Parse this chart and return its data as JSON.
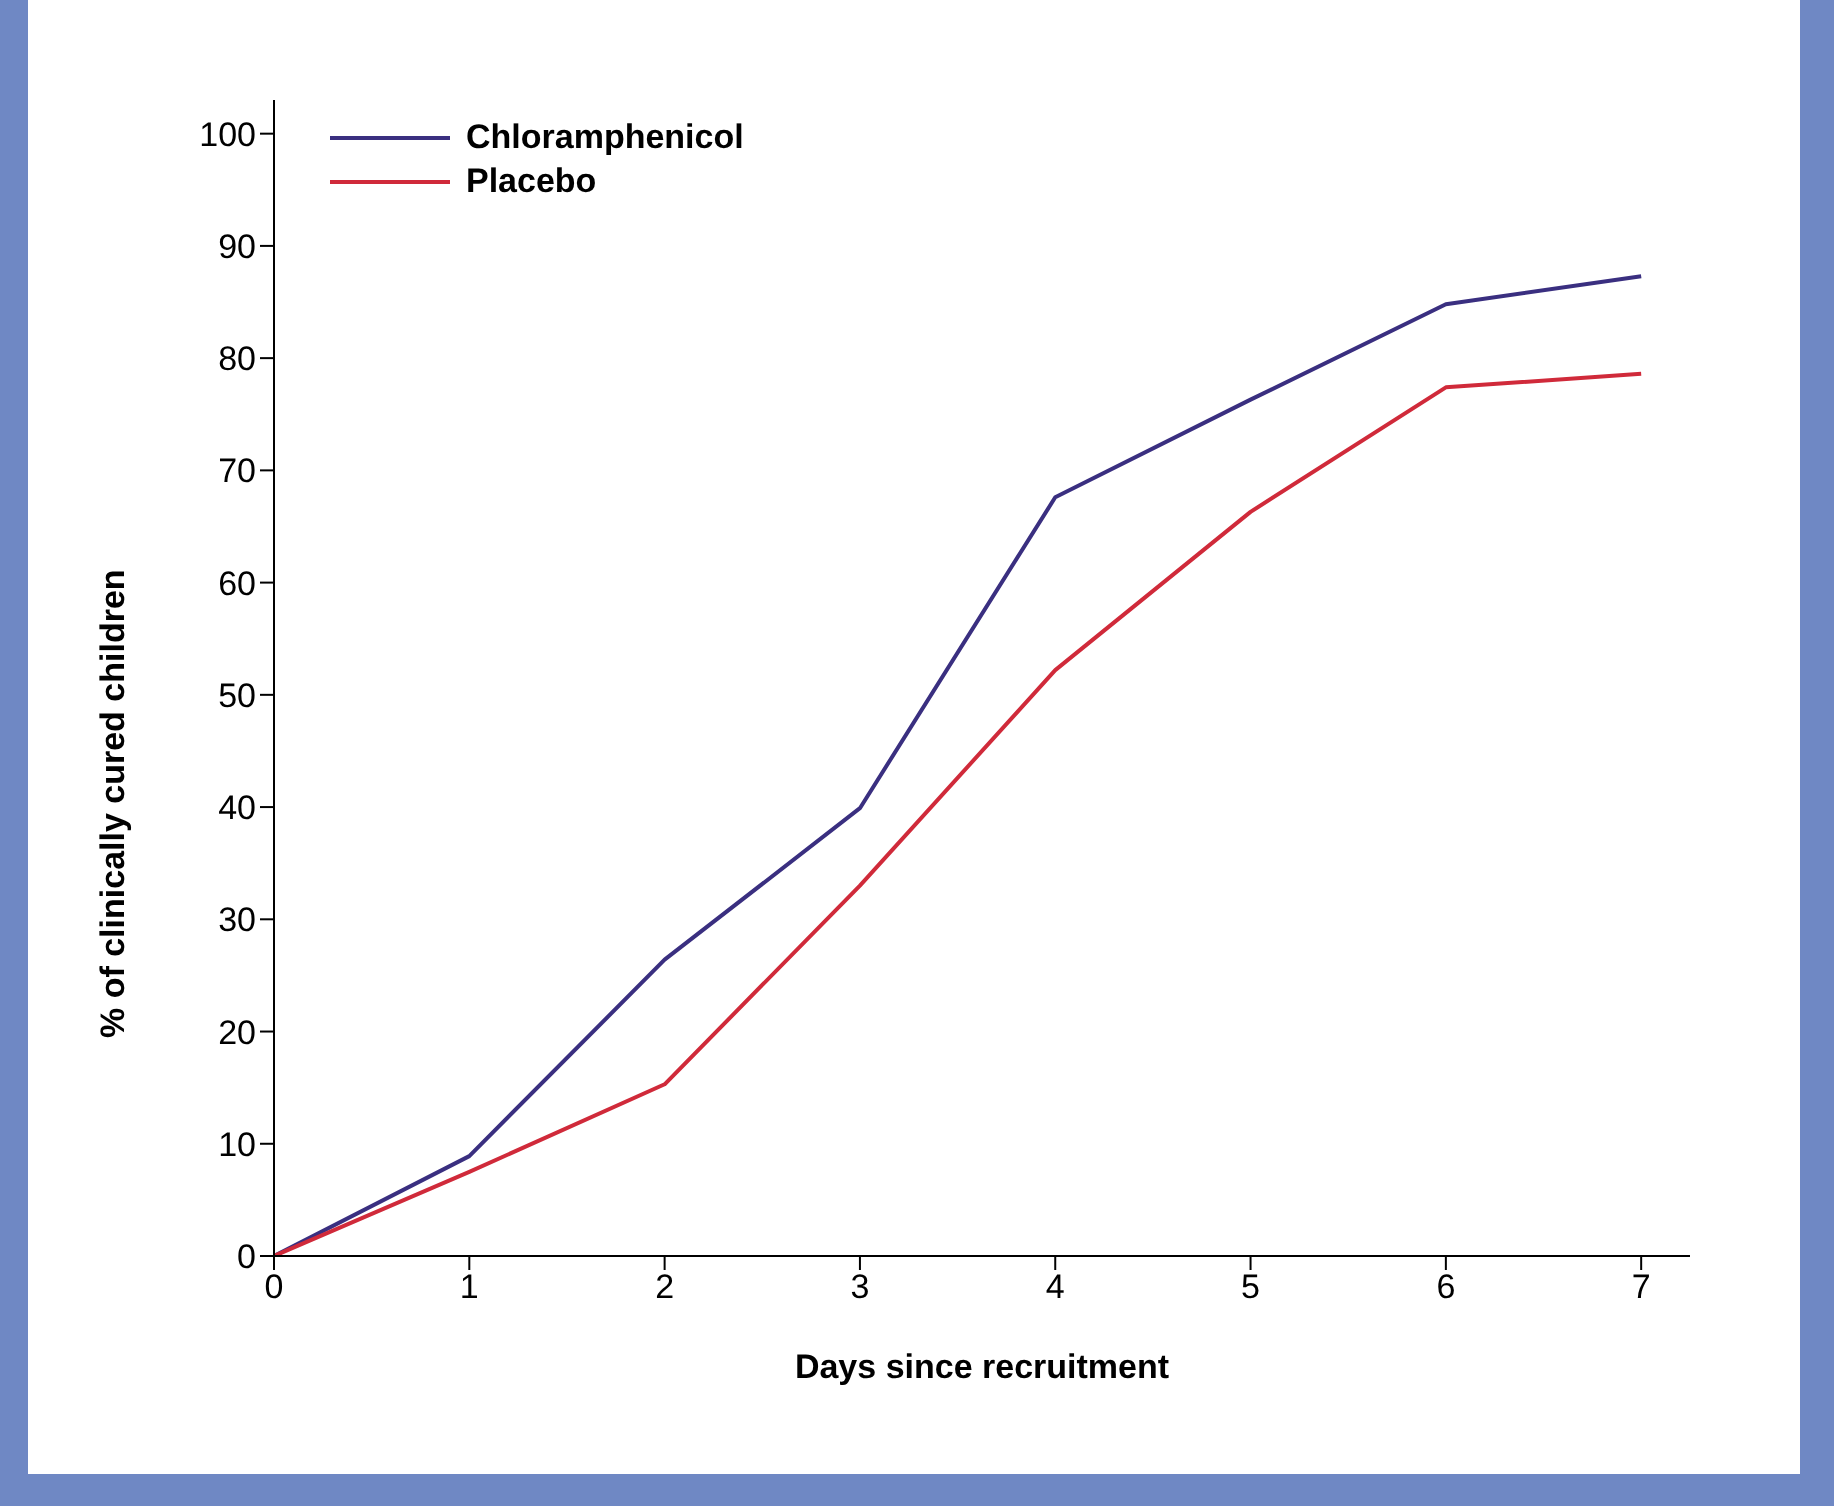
{
  "chart_data": {
    "type": "line",
    "xlabel": "Days since recruitment",
    "ylabel": "% of clinically cured children",
    "x": [
      0,
      1,
      2,
      3,
      4,
      5,
      6,
      7
    ],
    "series": [
      {
        "name": "Chloramphenicol",
        "color": "#3a2f80",
        "values": [
          0,
          8.9,
          26.4,
          39.9,
          67.6,
          76.3,
          84.8,
          87.3
        ]
      },
      {
        "name": "Placebo",
        "color": "#d02a3a",
        "values": [
          0,
          7.5,
          15.3,
          33.0,
          52.2,
          66.3,
          77.4,
          78.6
        ]
      }
    ],
    "xlim": [
      0,
      7.25
    ],
    "xticks": [
      0,
      1,
      2,
      3,
      4,
      5,
      6,
      7
    ],
    "ylim": [
      0,
      103
    ],
    "yticks": [
      0,
      10,
      20,
      30,
      40,
      50,
      60,
      70,
      80,
      90,
      100
    ],
    "grid": false,
    "legend": "top left",
    "marker": "none",
    "line_style": "solid"
  }
}
